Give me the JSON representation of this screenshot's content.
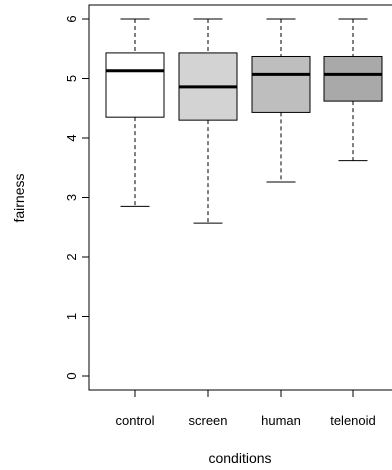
{
  "chart_data": {
    "type": "boxplot",
    "xlabel": "conditions",
    "ylabel": "fairness",
    "ylim": [
      0,
      6
    ],
    "yticks": [
      0,
      1,
      2,
      3,
      4,
      5,
      6
    ],
    "categories": [
      "control",
      "screen",
      "human",
      "telenoid"
    ],
    "boxes": [
      {
        "category": "control",
        "whisker_low": 2.85,
        "q1": 4.35,
        "median": 5.13,
        "q3": 5.43,
        "whisker_high": 6.0,
        "fill": "#ffffff"
      },
      {
        "category": "screen",
        "whisker_low": 2.57,
        "q1": 4.3,
        "median": 4.86,
        "q3": 5.43,
        "whisker_high": 6.0,
        "fill": "#d3d3d3"
      },
      {
        "category": "human",
        "whisker_low": 3.26,
        "q1": 4.43,
        "median": 5.07,
        "q3": 5.37,
        "whisker_high": 6.0,
        "fill": "#bebebe"
      },
      {
        "category": "telenoid",
        "whisker_low": 3.62,
        "q1": 4.62,
        "median": 5.07,
        "q3": 5.37,
        "whisker_high": 6.0,
        "fill": "#a9a9a9"
      }
    ],
    "grid": false,
    "legend": "none"
  }
}
